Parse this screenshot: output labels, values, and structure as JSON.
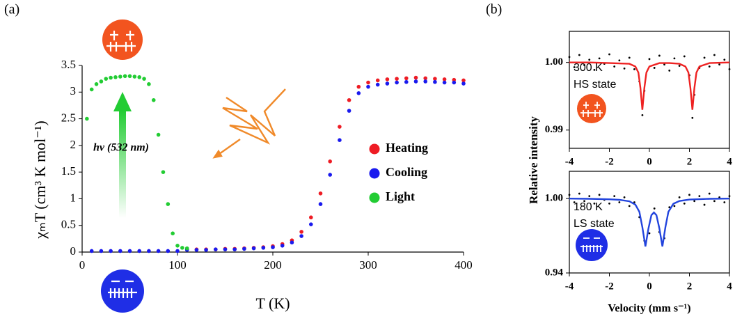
{
  "chart_data": [
    {
      "type": "scatter",
      "panel_label": "(a)",
      "xlabel": "T (K)",
      "ylabel": "χₘT (cm³ K mol⁻¹)",
      "annotation": "hν (532 nm)",
      "xlim": [
        0,
        400
      ],
      "ylim": [
        0,
        3.5
      ],
      "xticks": [
        0,
        100,
        200,
        300,
        400
      ],
      "yticks": [
        0,
        0.5,
        1,
        1.5,
        2,
        2.5,
        3,
        3.5
      ],
      "legend": "right",
      "series": [
        {
          "name": "Heating",
          "color": "#ee1c24",
          "mode": "markers",
          "x": [
            110,
            120,
            130,
            140,
            150,
            160,
            170,
            180,
            190,
            200,
            210,
            220,
            230,
            240,
            250,
            260,
            270,
            280,
            290,
            300,
            310,
            320,
            330,
            340,
            350,
            360,
            370,
            380,
            390,
            400
          ],
          "values": [
            0.05,
            0.05,
            0.05,
            0.05,
            0.06,
            0.06,
            0.07,
            0.08,
            0.09,
            0.11,
            0.15,
            0.22,
            0.38,
            0.65,
            1.1,
            1.7,
            2.35,
            2.85,
            3.1,
            3.18,
            3.22,
            3.24,
            3.25,
            3.26,
            3.27,
            3.26,
            3.25,
            3.24,
            3.23,
            3.22
          ]
        },
        {
          "name": "Cooling",
          "color": "#1a1aee",
          "mode": "markers",
          "x": [
            10,
            20,
            30,
            40,
            50,
            60,
            70,
            80,
            90,
            100,
            110,
            120,
            130,
            140,
            150,
            160,
            170,
            180,
            190,
            200,
            210,
            220,
            230,
            240,
            250,
            260,
            270,
            280,
            290,
            300,
            310,
            320,
            330,
            340,
            350,
            360,
            370,
            380,
            390,
            400
          ],
          "values": [
            0.02,
            0.02,
            0.02,
            0.02,
            0.02,
            0.02,
            0.02,
            0.02,
            0.02,
            0.02,
            0.04,
            0.04,
            0.04,
            0.05,
            0.05,
            0.05,
            0.06,
            0.07,
            0.08,
            0.09,
            0.12,
            0.18,
            0.3,
            0.52,
            0.9,
            1.45,
            2.1,
            2.65,
            2.98,
            3.1,
            3.14,
            3.16,
            3.18,
            3.19,
            3.2,
            3.2,
            3.19,
            3.18,
            3.18,
            3.16
          ]
        },
        {
          "name": "Light",
          "color": "#22cc33",
          "mode": "markers",
          "x": [
            5,
            10,
            15,
            20,
            25,
            30,
            35,
            40,
            45,
            50,
            55,
            60,
            65,
            70,
            75,
            80,
            85,
            90,
            95,
            100,
            105,
            110
          ],
          "values": [
            2.5,
            3.05,
            3.15,
            3.2,
            3.25,
            3.27,
            3.28,
            3.29,
            3.3,
            3.3,
            3.29,
            3.28,
            3.25,
            3.15,
            2.85,
            2.2,
            1.5,
            0.9,
            0.35,
            0.12,
            0.08,
            0.07
          ]
        }
      ]
    },
    {
      "type": "scatter",
      "panel_label": "(b)",
      "ylabel": "Relative intensity",
      "annotations": [
        "300 K",
        "HS state"
      ],
      "annotation_color": "#ee1c24",
      "tick_label_color": "#1a3fd0",
      "xlim": [
        -4,
        4
      ],
      "ylim": [
        0.9873,
        1.0046
      ],
      "xticks": [
        -4,
        -2,
        0,
        2,
        4
      ],
      "yticks": [
        {
          "value": 1,
          "label": "1.00"
        },
        {
          "value": 0.99,
          "label": "0.99"
        }
      ],
      "series": [
        {
          "color": "#000000",
          "mode": "markers",
          "x": [
            -4,
            -3.75,
            -3.5,
            -3.25,
            -3,
            -2.75,
            -2.5,
            -2.25,
            -2,
            -1.75,
            -1.5,
            -1.25,
            -1,
            -0.75,
            -0.5,
            -0.25,
            0,
            0.25,
            0.5,
            0.75,
            1,
            1.25,
            1.5,
            1.75,
            2,
            2.25,
            2.5,
            2.75,
            3,
            3.25,
            3.5,
            3.75,
            4,
            -0.35,
            2.15
          ],
          "values": [
            1.0008,
            0.9993,
            1.0011,
            0.9996,
            1.0004,
            0.9989,
            1.0006,
            0.9998,
            1.0012,
            0.9994,
            1.0003,
            0.9991,
            1.0007,
            0.999,
            0.9972,
            0.9958,
            1.0005,
            0.9992,
            1.001,
            0.9997,
            0.9988,
            1.0006,
            0.9995,
            1.0009,
            0.9981,
            0.9952,
            0.9992,
            1.0007,
            0.9994,
            1.0011,
            0.9997,
            1.0004,
            0.999,
            0.9922,
            0.9918
          ]
        },
        {
          "color": "#ee2222",
          "mode": "line",
          "x": [
            -4,
            -3,
            -2,
            -1,
            -0.7,
            -0.55,
            -0.45,
            -0.35,
            -0.25,
            -0.15,
            0,
            0.5,
            1,
            1.5,
            1.8,
            1.95,
            2.05,
            2.15,
            2.25,
            2.35,
            2.5,
            3,
            4
          ],
          "values": [
            1,
            1,
            0.9999,
            0.9998,
            0.9994,
            0.9985,
            0.99625,
            0.993,
            0.99625,
            0.9985,
            0.9994,
            0.9999,
            0.9999,
            0.9998,
            0.9994,
            0.9985,
            0.99625,
            0.993,
            0.99625,
            0.9985,
            0.9994,
            0.9999,
            1
          ]
        }
      ]
    },
    {
      "type": "scatter",
      "xlabel": "Velocity (mm s⁻¹)",
      "annotations": [
        "180 K",
        "LS state"
      ],
      "annotation_color": "#1a1aee",
      "xlim": [
        -4,
        4
      ],
      "ylim": [
        0.94,
        1.022
      ],
      "xticks": [
        -4,
        -2,
        0,
        2,
        4
      ],
      "yticks": [
        {
          "value": 1,
          "label": "1.00"
        },
        {
          "value": 0.94,
          "label": "0.94"
        }
      ],
      "series": [
        {
          "color": "#000000",
          "mode": "markers",
          "x": [
            -4,
            -3.75,
            -3.5,
            -3.25,
            -3,
            -2.75,
            -2.5,
            -2.25,
            -2,
            -1.75,
            -1.5,
            -1.25,
            -1,
            -0.75,
            -0.5,
            -0.25,
            0,
            0.25,
            0.5,
            0.75,
            1,
            1.25,
            1.5,
            1.75,
            2,
            2.25,
            2.5,
            2.75,
            3,
            3.25,
            3.5,
            3.75,
            4
          ],
          "values": [
            1.003,
            0.997,
            1.004,
            0.998,
            1.002,
            0.996,
            1.003,
            0.999,
            0.996,
            1.002,
            0.997,
            1.001,
            0.994,
            0.997,
            0.985,
            0.966,
            0.972,
            0.992,
            0.973,
            0.968,
            0.993,
            0.994,
            1.001,
            0.996,
            1.003,
            0.998,
            1.002,
            0.995,
            1.004,
            0.998,
            1.001,
            0.997,
            1.002
          ]
        },
        {
          "color": "#2244dd",
          "mode": "line",
          "x": [
            -4,
            -3,
            -2,
            -1.5,
            -1,
            -0.7,
            -0.5,
            -0.35,
            -0.2,
            -0.05,
            0.1,
            0.225,
            0.35,
            0.5,
            0.65,
            0.8,
            0.95,
            1.2,
            1.5,
            2,
            3,
            4
          ],
          "values": [
            1,
            0.9998,
            0.9994,
            0.999,
            0.9978,
            0.9951,
            0.9893,
            0.9769,
            0.9614,
            0.9758,
            0.9866,
            0.9888,
            0.9866,
            0.9758,
            0.9614,
            0.9769,
            0.9893,
            0.9958,
            0.998,
            0.9992,
            0.9998,
            1
          ]
        }
      ]
    }
  ]
}
